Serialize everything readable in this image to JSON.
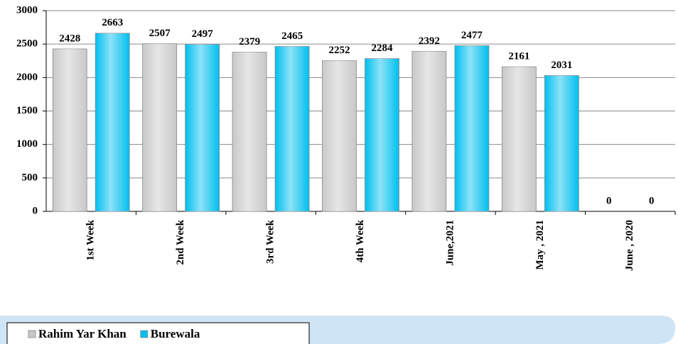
{
  "chart_data": {
    "type": "bar",
    "categories": [
      "1st Week",
      "2nd Week",
      "3rd Week",
      "4th Week",
      "June,2021",
      "May , 2021",
      "June , 2020"
    ],
    "series": [
      {
        "name": "Rahim Yar Khan",
        "color": "#c8c8c8",
        "values": [
          2428,
          2507,
          2379,
          2252,
          2392,
          2161,
          0
        ]
      },
      {
        "name": "Burewala",
        "color": "#00bfef",
        "values": [
          2663,
          2497,
          2465,
          2284,
          2477,
          2031,
          0
        ]
      }
    ],
    "ylim": [
      0,
      3000
    ],
    "yticks": [
      0,
      500,
      1000,
      1500,
      2000,
      2500,
      3000
    ],
    "grid": true,
    "legend": "bottom-left"
  }
}
